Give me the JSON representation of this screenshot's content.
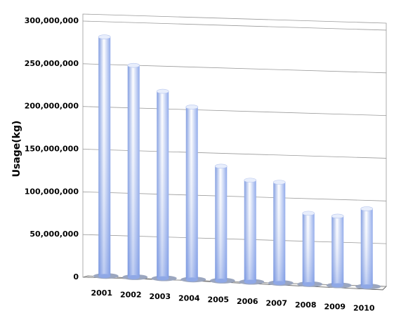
{
  "chart_data": {
    "type": "bar",
    "y_label": "Usage(kg)",
    "categories": [
      "2001",
      "2002",
      "2003",
      "2004",
      "2005",
      "2006",
      "2007",
      "2008",
      "2009",
      "2010"
    ],
    "values": [
      280000000,
      248000000,
      219000000,
      202000000,
      134000000,
      119000000,
      118000000,
      83000000,
      81000000,
      91000000
    ],
    "color": "#8fa8e6",
    "ylim": [
      0,
      300000000
    ],
    "yticks": [
      {
        "value": 0,
        "label": "0"
      },
      {
        "value": 50000000,
        "label": "50,000,000"
      },
      {
        "value": 100000000,
        "label": "100,000,000"
      },
      {
        "value": 150000000,
        "label": "150,000,000"
      },
      {
        "value": 200000000,
        "label": "200,000,000"
      },
      {
        "value": 250000000,
        "label": "250,000,000"
      },
      {
        "value": 300000000,
        "label": "300,000,000"
      }
    ],
    "grid": true
  }
}
